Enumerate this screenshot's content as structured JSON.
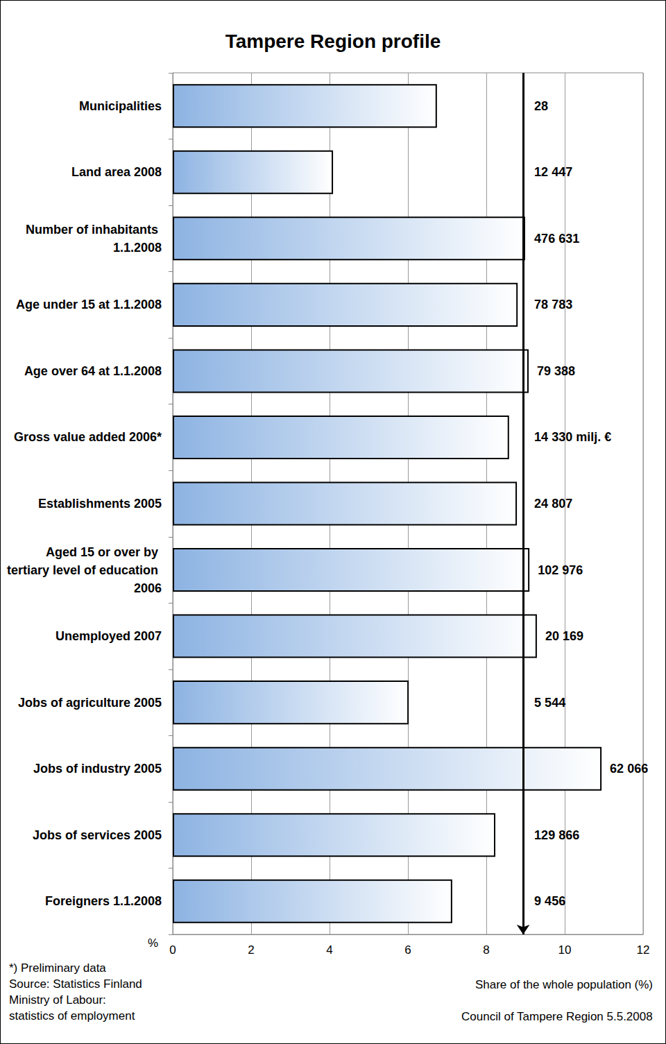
{
  "chart_data": {
    "type": "bar",
    "orientation": "horizontal",
    "title": "Tampere Region profile",
    "categories": [
      "Municipalities",
      "Land area 2008",
      "Number of inhabitants 1.1.2008",
      "Age under 15 at 1.1.2008",
      "Age over 64 at 1.1.2008",
      "Gross value added 2006*",
      "Establishments 2005",
      "Aged 15 or over by tertiary level of education 2006",
      "Unemployed 2007",
      "Jobs of agriculture 2005",
      "Jobs of industry 2005",
      "Jobs of services 2005",
      "Foreigners 1.1.2008"
    ],
    "values": [
      6.74,
      4.09,
      8.99,
      8.8,
      9.08,
      8.58,
      8.78,
      9.1,
      9.29,
      6.02,
      10.94,
      8.23,
      7.13
    ],
    "annotations": [
      "28",
      "12 447",
      "476 631",
      "78 783",
      "79 388",
      "14 330 milj. €",
      "24 807",
      "102 976",
      "20 169",
      "5 544",
      "62 066",
      "129 866",
      "9 456"
    ],
    "reference_line": 8.94,
    "color": "#8db3e2",
    "xlim": [
      0,
      12
    ],
    "xticks": [
      0,
      2,
      4,
      6,
      8,
      10,
      12
    ],
    "grid": true,
    "x_label": "Share of the whole population (%)",
    "x_unit": "%",
    "notes": [
      "*) Preliminary data",
      "Source: Statistics Finland",
      "Ministry of Labour:",
      "statistics of employment"
    ],
    "credit": "Council of Tampere Region 5.5.2008"
  }
}
